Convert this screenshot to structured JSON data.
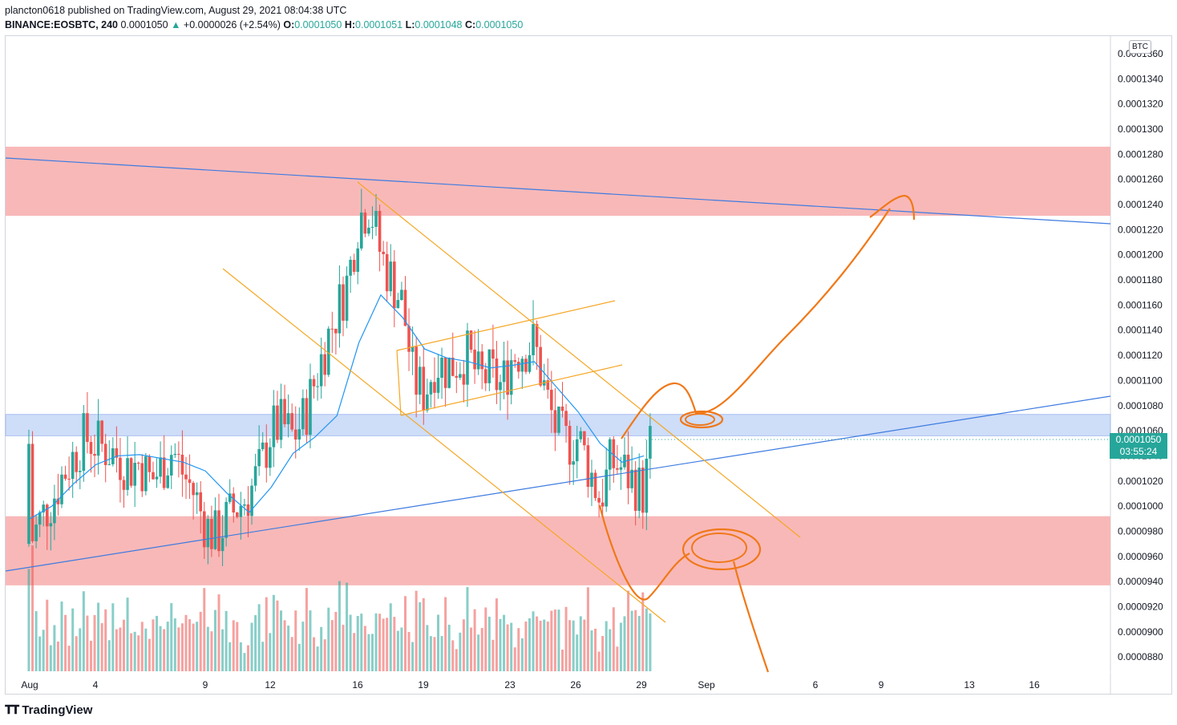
{
  "header": {
    "publisher": "plancton0618 published on TradingView.com, August 29, 2021 08:04:38 UTC",
    "symbol": "BINANCE:EOSBTC, 240",
    "last": "0.0001050",
    "change_arrow": "▲",
    "change": "+0.0000026 (+2.54%)",
    "o_label": "O:",
    "o_value": "0.0001050",
    "h_label": "H:",
    "h_value": "0.0001051",
    "l_label": "L:",
    "l_value": "0.0001048",
    "c_label": "C:",
    "c_value": "0.0001050"
  },
  "price_axis": {
    "currency": "BTC",
    "current_price": "0.0001050",
    "countdown": "03:55:24"
  },
  "brand": {
    "name": "TradingView",
    "logo_icon": "tradingview-logo-icon"
  },
  "colors": {
    "up": "#26a69a",
    "down": "#ef5350",
    "ma": "#2196f3",
    "orange": "#f57c00",
    "resistance_zone": "#f8b4b4",
    "pivot_zone": "#c6d8f7",
    "trendline": "#2962ff"
  },
  "chart_data": {
    "type": "candlestick",
    "title": "BINANCE:EOSBTC, 240",
    "ylim": [
      8.68e-05,
      0.0001374
    ],
    "y_ticks": [
      "0.0001360",
      "0.0001340",
      "0.0001320",
      "0.0001300",
      "0.0001280",
      "0.0001260",
      "0.0001240",
      "0.0001220",
      "0.0001200",
      "0.0001180",
      "0.0001160",
      "0.0001140",
      "0.0001120",
      "0.0001100",
      "0.0001080",
      "0.0001060",
      "0.0001040",
      "0.0001020",
      "0.0001000",
      "0.0000980",
      "0.0000960",
      "0.0000940",
      "0.0000920",
      "0.0000900",
      "0.0000880"
    ],
    "x_ticks": [
      "Aug",
      "4",
      "9",
      "12",
      "16",
      "19",
      "23",
      "26",
      "29",
      "Sep",
      "6",
      "9",
      "13",
      "16"
    ],
    "close_path_days": [
      1,
      1.5,
      2,
      2.5,
      3,
      3.5,
      4,
      4.5,
      5,
      5.5,
      6,
      6.5,
      7,
      7.5,
      8,
      8.5,
      9,
      9.5,
      10,
      10.5,
      11,
      11.5,
      12,
      12.5,
      13,
      13.5,
      14,
      14.5,
      15,
      15.5,
      16,
      16.5,
      17,
      17.5,
      18,
      18.5,
      19,
      19.5,
      20,
      20.5,
      21,
      21.5,
      22,
      22.5,
      23,
      23.5,
      24,
      24.5,
      25,
      25.5,
      26,
      26.5,
      27,
      27.5,
      28,
      28.5,
      29,
      29.3
    ],
    "close_path_values": [
      9.7e-05,
      9.9e-05,
      0.0001005,
      0.0001025,
      0.000104,
      0.0001055,
      0.000105,
      0.0001045,
      0.000104,
      0.000103,
      0.0001035,
      0.000102,
      0.000103,
      0.0001045,
      0.0001025,
      0.000101,
      9.85e-05,
      9.75e-05,
      9.9e-05,
      0.0001,
      0.000101,
      0.000103,
      0.000106,
      0.0001065,
      0.0001055,
      0.000107,
      0.00011,
      0.000113,
      0.0001155,
      0.000118,
      0.000123,
      0.000124,
      0.00012,
      0.000118,
      0.000116,
      0.00011,
      0.000109,
      0.0001115,
      0.000111,
      0.0001115,
      0.000112,
      0.00011,
      0.0001105,
      0.0001095,
      0.000112,
      0.0001125,
      0.000113,
      0.000109,
      0.000106,
      0.000105,
      0.0001055,
      0.000103,
      0.0001005,
      0.0001035,
      0.000103,
      0.000102,
      0.000101,
      0.000105
    ],
    "moving_average": {
      "name": "MA",
      "days": [
        1,
        2,
        3,
        4,
        5,
        6,
        7,
        8,
        9,
        10,
        11,
        12,
        13,
        14,
        15,
        16,
        17,
        18,
        19,
        20,
        21,
        22,
        23,
        24,
        25,
        26,
        27,
        28,
        29
      ],
      "values": [
        9.9e-05,
        0.0001,
        0.0001018,
        0.0001033,
        0.000104,
        0.0001041,
        0.0001038,
        0.0001035,
        0.0001028,
        0.000101,
        9.95e-05,
        0.0001015,
        0.0001042,
        0.0001055,
        0.0001072,
        0.000113,
        0.0001168,
        0.000115,
        0.0001125,
        0.0001118,
        0.0001115,
        0.000111,
        0.0001112,
        0.0001115,
        0.0001095,
        0.0001075,
        0.000105,
        0.0001035,
        0.000104
      ]
    },
    "zones": [
      {
        "name": "upper-resistance",
        "from": 0.0001231,
        "to": 0.0001286
      },
      {
        "name": "pivot",
        "from": 0.0001056,
        "to": 0.0001073
      },
      {
        "name": "lower-support",
        "from": 9.37e-05,
        "to": 9.92e-05
      }
    ],
    "annotations": [
      "descending channel",
      "ascending flag",
      "blue trendlines",
      "projected path"
    ]
  }
}
